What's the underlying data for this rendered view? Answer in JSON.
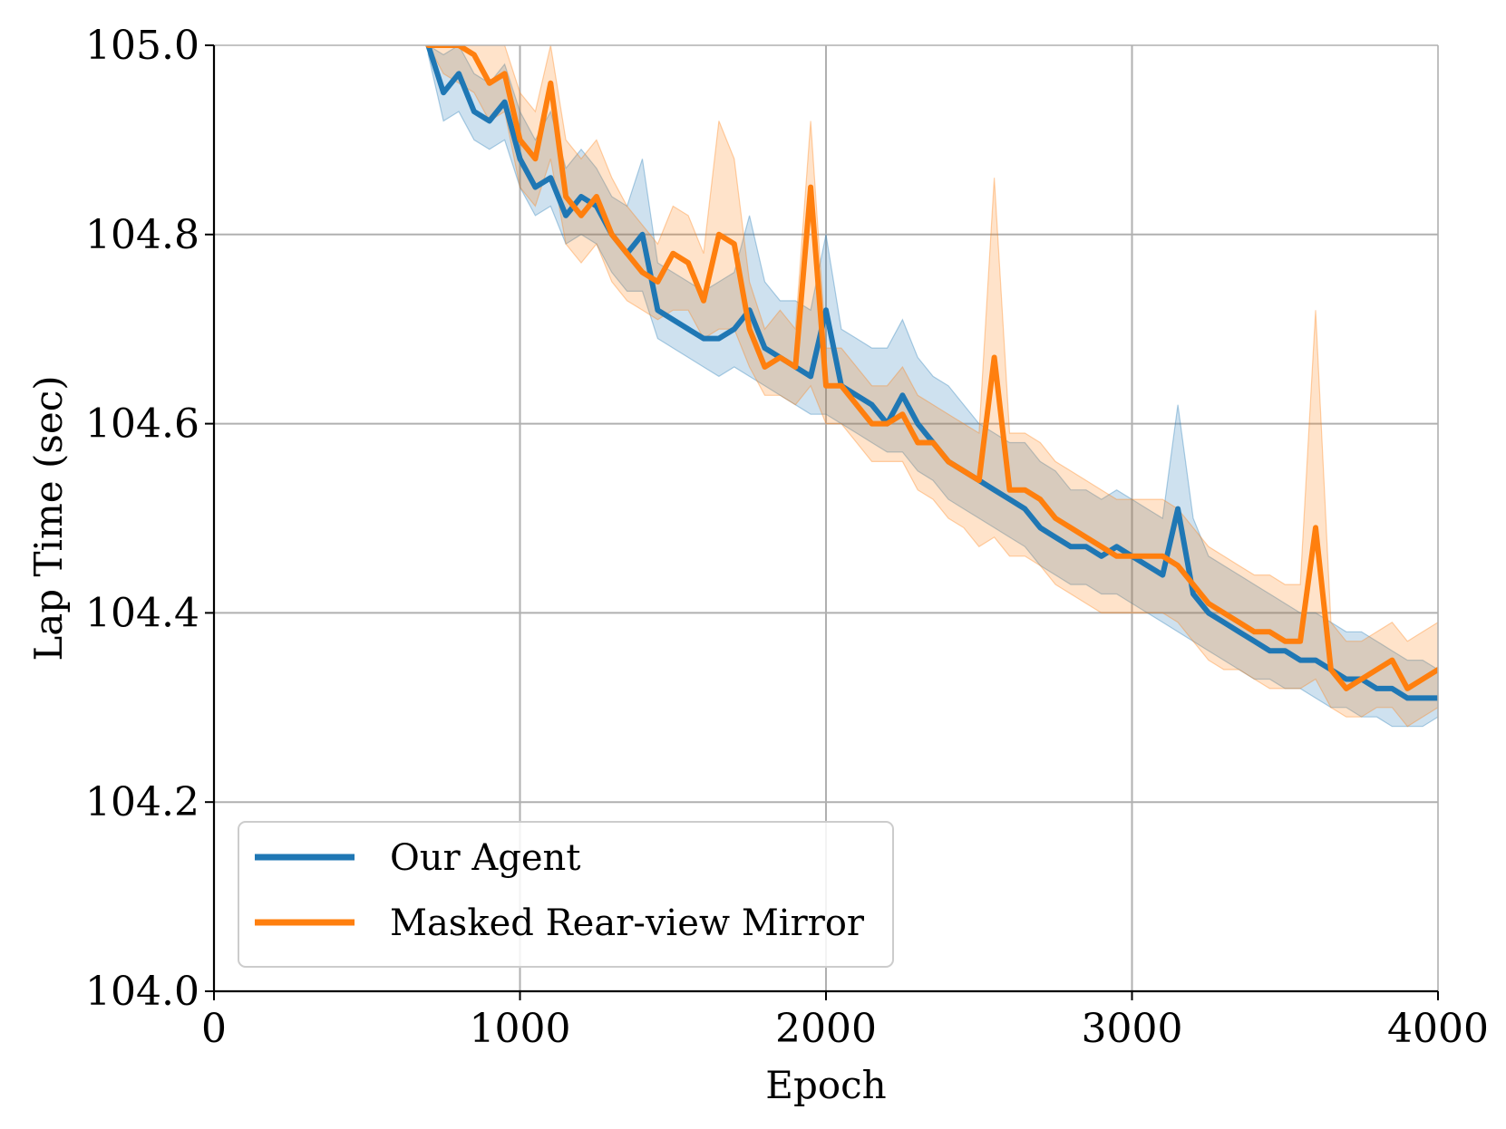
{
  "chart_data": {
    "type": "line",
    "title": "",
    "xlabel": "Epoch",
    "ylabel": "Lap Time (sec)",
    "xlim": [
      0,
      4000
    ],
    "ylim": [
      104.0,
      105.0
    ],
    "x_ticks": [
      "0",
      "1000",
      "2000",
      "3000",
      "4000"
    ],
    "y_ticks": [
      "104.0",
      "104.2",
      "104.4",
      "104.6",
      "104.8",
      "105.0"
    ],
    "grid": true,
    "legend_position": "lower-left",
    "series": [
      {
        "name": "Our Agent",
        "color": "#1f77b4",
        "x": [
          700,
          750,
          800,
          850,
          900,
          950,
          1000,
          1050,
          1100,
          1150,
          1200,
          1250,
          1300,
          1350,
          1400,
          1450,
          1500,
          1550,
          1600,
          1650,
          1700,
          1750,
          1800,
          1850,
          1900,
          1950,
          2000,
          2050,
          2100,
          2150,
          2200,
          2250,
          2300,
          2350,
          2400,
          2450,
          2500,
          2550,
          2600,
          2650,
          2700,
          2750,
          2800,
          2850,
          2900,
          2950,
          3000,
          3050,
          3100,
          3150,
          3200,
          3250,
          3300,
          3350,
          3400,
          3450,
          3500,
          3550,
          3600,
          3650,
          3700,
          3750,
          3800,
          3850,
          3900,
          3950,
          4000
        ],
        "y": [
          105.0,
          104.95,
          104.97,
          104.93,
          104.92,
          104.94,
          104.88,
          104.85,
          104.86,
          104.82,
          104.84,
          104.83,
          104.8,
          104.78,
          104.8,
          104.72,
          104.71,
          104.7,
          104.69,
          104.69,
          104.7,
          104.72,
          104.68,
          104.67,
          104.66,
          104.65,
          104.72,
          104.64,
          104.63,
          104.62,
          104.6,
          104.63,
          104.6,
          104.58,
          104.56,
          104.55,
          104.54,
          104.53,
          104.52,
          104.51,
          104.49,
          104.48,
          104.47,
          104.47,
          104.46,
          104.47,
          104.46,
          104.45,
          104.44,
          104.51,
          104.42,
          104.4,
          104.39,
          104.38,
          104.37,
          104.36,
          104.36,
          104.35,
          104.35,
          104.34,
          104.33,
          104.33,
          104.32,
          104.32,
          104.31,
          104.31,
          104.31
        ],
        "lower": [
          104.99,
          104.92,
          104.93,
          104.9,
          104.89,
          104.9,
          104.85,
          104.82,
          104.83,
          104.79,
          104.8,
          104.79,
          104.76,
          104.74,
          104.74,
          104.69,
          104.68,
          104.67,
          104.66,
          104.65,
          104.66,
          104.65,
          104.64,
          104.63,
          104.62,
          104.61,
          104.61,
          104.6,
          104.59,
          104.58,
          104.57,
          104.57,
          104.55,
          104.54,
          104.52,
          104.51,
          104.5,
          104.49,
          104.48,
          104.47,
          104.45,
          104.44,
          104.43,
          104.43,
          104.42,
          104.42,
          104.41,
          104.4,
          104.39,
          104.38,
          104.37,
          104.36,
          104.35,
          104.34,
          104.33,
          104.33,
          104.32,
          104.32,
          104.31,
          104.3,
          104.3,
          104.29,
          104.29,
          104.28,
          104.28,
          104.28,
          104.29
        ],
        "upper": [
          105.0,
          104.99,
          105.0,
          104.97,
          104.96,
          104.98,
          104.93,
          104.9,
          104.93,
          104.87,
          104.89,
          104.87,
          104.84,
          104.83,
          104.88,
          104.77,
          104.76,
          104.75,
          104.74,
          104.75,
          104.76,
          104.82,
          104.75,
          104.73,
          104.73,
          104.72,
          104.8,
          104.7,
          104.69,
          104.68,
          104.68,
          104.71,
          104.67,
          104.65,
          104.64,
          104.62,
          104.6,
          104.59,
          104.58,
          104.58,
          104.56,
          104.55,
          104.53,
          104.53,
          104.52,
          104.53,
          104.52,
          104.51,
          104.5,
          104.62,
          104.5,
          104.46,
          104.45,
          104.44,
          104.43,
          104.42,
          104.41,
          104.4,
          104.4,
          104.39,
          104.38,
          104.38,
          104.37,
          104.36,
          104.35,
          104.35,
          104.34
        ]
      },
      {
        "name": "Masked Rear-view Mirror",
        "color": "#ff7f0e",
        "x": [
          700,
          750,
          800,
          850,
          900,
          950,
          1000,
          1050,
          1100,
          1150,
          1200,
          1250,
          1300,
          1350,
          1400,
          1450,
          1500,
          1550,
          1600,
          1650,
          1700,
          1750,
          1800,
          1850,
          1900,
          1950,
          2000,
          2050,
          2100,
          2150,
          2200,
          2250,
          2300,
          2350,
          2400,
          2450,
          2500,
          2550,
          2600,
          2650,
          2700,
          2750,
          2800,
          2850,
          2900,
          2950,
          3000,
          3050,
          3100,
          3150,
          3200,
          3250,
          3300,
          3350,
          3400,
          3450,
          3500,
          3550,
          3600,
          3650,
          3700,
          3750,
          3800,
          3850,
          3900,
          3950,
          4000
        ],
        "y": [
          105.0,
          105.0,
          105.0,
          104.99,
          104.96,
          104.97,
          104.9,
          104.88,
          104.96,
          104.84,
          104.82,
          104.84,
          104.8,
          104.78,
          104.76,
          104.75,
          104.78,
          104.77,
          104.73,
          104.8,
          104.79,
          104.7,
          104.66,
          104.67,
          104.66,
          104.85,
          104.64,
          104.64,
          104.62,
          104.6,
          104.6,
          104.61,
          104.58,
          104.58,
          104.56,
          104.55,
          104.54,
          104.67,
          104.53,
          104.53,
          104.52,
          104.5,
          104.49,
          104.48,
          104.47,
          104.46,
          104.46,
          104.46,
          104.46,
          104.45,
          104.43,
          104.41,
          104.4,
          104.39,
          104.38,
          104.38,
          104.37,
          104.37,
          104.49,
          104.34,
          104.32,
          104.33,
          104.34,
          104.35,
          104.32,
          104.33,
          104.34
        ],
        "lower": [
          105.0,
          104.97,
          104.96,
          104.95,
          104.92,
          104.93,
          104.85,
          104.83,
          104.88,
          104.79,
          104.77,
          104.79,
          104.75,
          104.73,
          104.72,
          104.71,
          104.72,
          104.72,
          104.69,
          104.7,
          104.7,
          104.66,
          104.63,
          104.63,
          104.62,
          104.64,
          104.6,
          104.6,
          104.58,
          104.56,
          104.56,
          104.56,
          104.53,
          104.52,
          104.5,
          104.49,
          104.47,
          104.48,
          104.46,
          104.46,
          104.45,
          104.43,
          104.42,
          104.41,
          104.4,
          104.4,
          104.4,
          104.4,
          104.4,
          104.39,
          104.37,
          104.35,
          104.34,
          104.34,
          104.33,
          104.32,
          104.32,
          104.32,
          104.33,
          104.3,
          104.29,
          104.29,
          104.3,
          104.3,
          104.28,
          104.29,
          104.3
        ],
        "upper": [
          105.0,
          105.0,
          105.0,
          105.0,
          105.0,
          105.0,
          104.95,
          104.93,
          105.0,
          104.9,
          104.88,
          104.9,
          104.86,
          104.83,
          104.81,
          104.79,
          104.83,
          104.82,
          104.78,
          104.92,
          104.88,
          104.75,
          104.7,
          104.72,
          104.7,
          104.92,
          104.68,
          104.68,
          104.66,
          104.64,
          104.64,
          104.66,
          104.63,
          104.62,
          104.61,
          104.6,
          104.59,
          104.86,
          104.59,
          104.59,
          104.58,
          104.56,
          104.55,
          104.54,
          104.53,
          104.52,
          104.52,
          104.52,
          104.52,
          104.51,
          104.49,
          104.47,
          104.46,
          104.45,
          104.44,
          104.44,
          104.43,
          104.43,
          104.72,
          104.39,
          104.37,
          104.37,
          104.38,
          104.39,
          104.37,
          104.38,
          104.39
        ]
      }
    ]
  }
}
